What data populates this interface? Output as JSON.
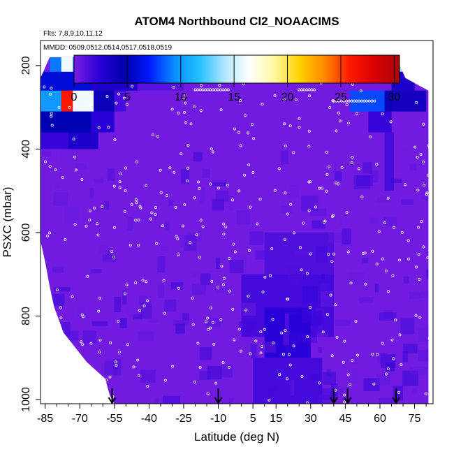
{
  "chart_data": {
    "type": "heatmap",
    "title": "ATOM4 Northbound Cl2_NOAACIMS",
    "flights_note": "Flts: 7,8,9,10,11,12",
    "dates_note": "MMDD: 0509,0512,0514,0517,0518,0519",
    "xlabel": "Latitude (deg N)",
    "ylabel": "PSXC (mbar)",
    "xlim": [
      -87,
      83
    ],
    "ylim": [
      1010,
      140
    ],
    "x_ticks": [
      -85,
      -70,
      -55,
      -40,
      -25,
      -10,
      5,
      15,
      30,
      45,
      60,
      75
    ],
    "x_tick_labels": [
      "-85",
      "-70",
      "-55",
      "-40",
      "-25",
      "-10",
      "5",
      "15",
      "30",
      "45",
      "60",
      "75"
    ],
    "y_ticks": [
      200,
      400,
      600,
      800,
      1000
    ],
    "y_tick_labels": [
      "200",
      "400",
      "600",
      "800",
      "1000"
    ],
    "colorbar": {
      "min": 0,
      "max": 30.5,
      "ticks": [
        0,
        5,
        10,
        15,
        20,
        25,
        30
      ],
      "tick_labels": [
        "0",
        "5",
        "10",
        "15",
        "20",
        "25",
        "30"
      ],
      "colors": [
        "#7a1fe0",
        "#2a00d8",
        "#0000a8",
        "#0018ff",
        "#0a8cff",
        "#20c0ff",
        "#aee6ff",
        "#ffffff",
        "#fff8a0",
        "#ffd200",
        "#ff8800",
        "#ff1a00",
        "#d80000",
        "#a80808"
      ]
    },
    "background_value": 0.3,
    "features": [
      {
        "lat": [
          -83,
          -40
        ],
        "p": [
          180,
          215
        ],
        "value": 9
      },
      {
        "lat": [
          -78,
          -73
        ],
        "p": [
          180,
          215
        ],
        "value": 16
      },
      {
        "lat": [
          -40,
          22
        ],
        "p": [
          180,
          215
        ],
        "value": 4.5
      },
      {
        "lat": [
          22,
          30
        ],
        "p": [
          180,
          215
        ],
        "value": 3.5
      },
      {
        "lat": [
          30,
          66
        ],
        "p": [
          180,
          215
        ],
        "value": 4
      },
      {
        "lat": [
          66,
          70
        ],
        "p": [
          180,
          215
        ],
        "value": 14
      },
      {
        "lat": [
          -87,
          -65
        ],
        "p": [
          215,
          260
        ],
        "value": 6
      },
      {
        "lat": [
          -65,
          -45
        ],
        "p": [
          215,
          260
        ],
        "value": 3
      },
      {
        "lat": [
          -45,
          -25
        ],
        "p": [
          215,
          260
        ],
        "value": 1
      },
      {
        "lat": [
          65,
          75
        ],
        "p": [
          215,
          260
        ],
        "value": 3
      },
      {
        "lat": [
          -87,
          -78
        ],
        "p": [
          260,
          310
        ],
        "value": 10
      },
      {
        "lat": [
          -78,
          -73
        ],
        "p": [
          260,
          310
        ],
        "value": 26
      },
      {
        "lat": [
          -73,
          -64
        ],
        "p": [
          260,
          310
        ],
        "value": 16
      },
      {
        "lat": [
          -64,
          -55
        ],
        "p": [
          260,
          310
        ],
        "value": 4
      },
      {
        "lat": [
          -55,
          -50
        ],
        "p": [
          260,
          310
        ],
        "value": 1.5
      },
      {
        "lat": [
          47,
          62
        ],
        "p": [
          260,
          310
        ],
        "value": 8
      },
      {
        "lat": [
          62,
          66
        ],
        "p": [
          260,
          310
        ],
        "value": 4
      },
      {
        "lat": [
          66,
          80
        ],
        "p": [
          260,
          310
        ],
        "value": 3.5
      },
      {
        "lat": [
          -87,
          -65
        ],
        "p": [
          310,
          360
        ],
        "value": 5
      },
      {
        "lat": [
          -65,
          -55
        ],
        "p": [
          310,
          360
        ],
        "value": 2.5
      },
      {
        "lat": [
          55,
          65
        ],
        "p": [
          310,
          360
        ],
        "value": 2
      },
      {
        "lat": [
          -87,
          -75
        ],
        "p": [
          360,
          400
        ],
        "value": 2
      },
      {
        "lat": [
          -75,
          -62
        ],
        "p": [
          360,
          400
        ],
        "value": 3
      },
      {
        "lat": [
          62,
          66
        ],
        "p": [
          360,
          500
        ],
        "value": 1.5
      },
      {
        "lat": [
          10,
          40
        ],
        "p": [
          600,
          700
        ],
        "value": 1.2
      },
      {
        "lat": [
          0,
          40
        ],
        "p": [
          700,
          850
        ],
        "value": 1.6
      },
      {
        "lat": [
          10,
          30
        ],
        "p": [
          780,
          900
        ],
        "value": 2.4
      },
      {
        "lat": [
          5,
          35
        ],
        "p": [
          900,
          1010
        ],
        "value": 1.6
      }
    ],
    "upper_boundary": [
      [
        -87,
        230
      ],
      [
        -83,
        180
      ],
      [
        67,
        180
      ],
      [
        71,
        230
      ],
      [
        81,
        260
      ]
    ],
    "lower_boundary": [
      [
        -87,
        620
      ],
      [
        -85,
        670
      ],
      [
        -83,
        730
      ],
      [
        -81,
        780
      ],
      [
        -77,
        840
      ],
      [
        -67,
        910
      ],
      [
        -59,
        950
      ],
      [
        -57,
        990
      ],
      [
        -55,
        1010
      ],
      [
        81,
        1010
      ]
    ],
    "flight_markers_lat": [
      -56,
      -10,
      40,
      46,
      67
    ]
  }
}
